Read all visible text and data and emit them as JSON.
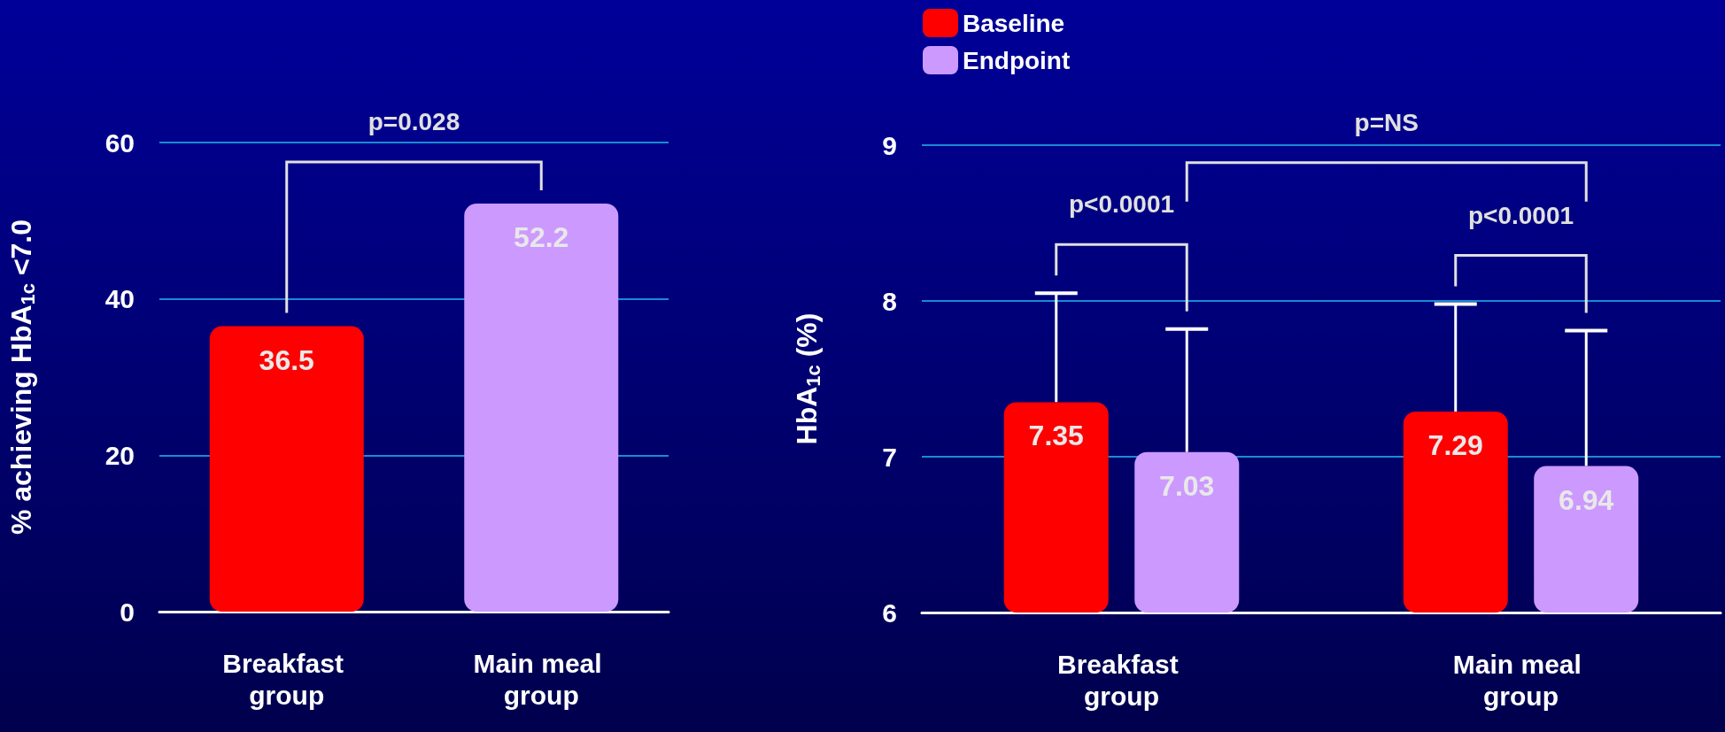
{
  "chart_data": [
    {
      "type": "bar",
      "ylabel": "% achieving HbA$_{1c}$ <7.0",
      "categories": [
        "Breakfast group",
        "Main meal group"
      ],
      "values": [
        36.5,
        52.2
      ],
      "colors": [
        "#ff0000",
        "#cc99ff"
      ],
      "ylim": [
        0,
        60
      ],
      "yticks": [
        0,
        20,
        40,
        60
      ],
      "grid": "y",
      "data_labels": true,
      "annotations": [
        "p=0.028"
      ]
    },
    {
      "type": "bar",
      "ylabel": "HbA$_{1c}$ (%)",
      "categories": [
        "Breakfast group",
        "Main meal group"
      ],
      "series": [
        {
          "name": "Baseline",
          "color": "#ff0000",
          "values": [
            7.35,
            7.29
          ],
          "errors": [
            [
              7.35,
              8.05
            ],
            [
              7.29,
              7.98
            ]
          ]
        },
        {
          "name": "Endpoint",
          "color": "#cc99ff",
          "values": [
            7.03,
            6.94
          ],
          "errors": [
            [
              7.03,
              7.82
            ],
            [
              6.94,
              7.81
            ]
          ]
        }
      ],
      "ylim": [
        6,
        9
      ],
      "yticks": [
        6,
        7,
        8,
        9
      ],
      "grid": "y",
      "legend": "top left",
      "data_labels": true,
      "annotations": [
        "p=NS",
        "p<0.0001",
        "p<0.0001"
      ]
    }
  ]
}
